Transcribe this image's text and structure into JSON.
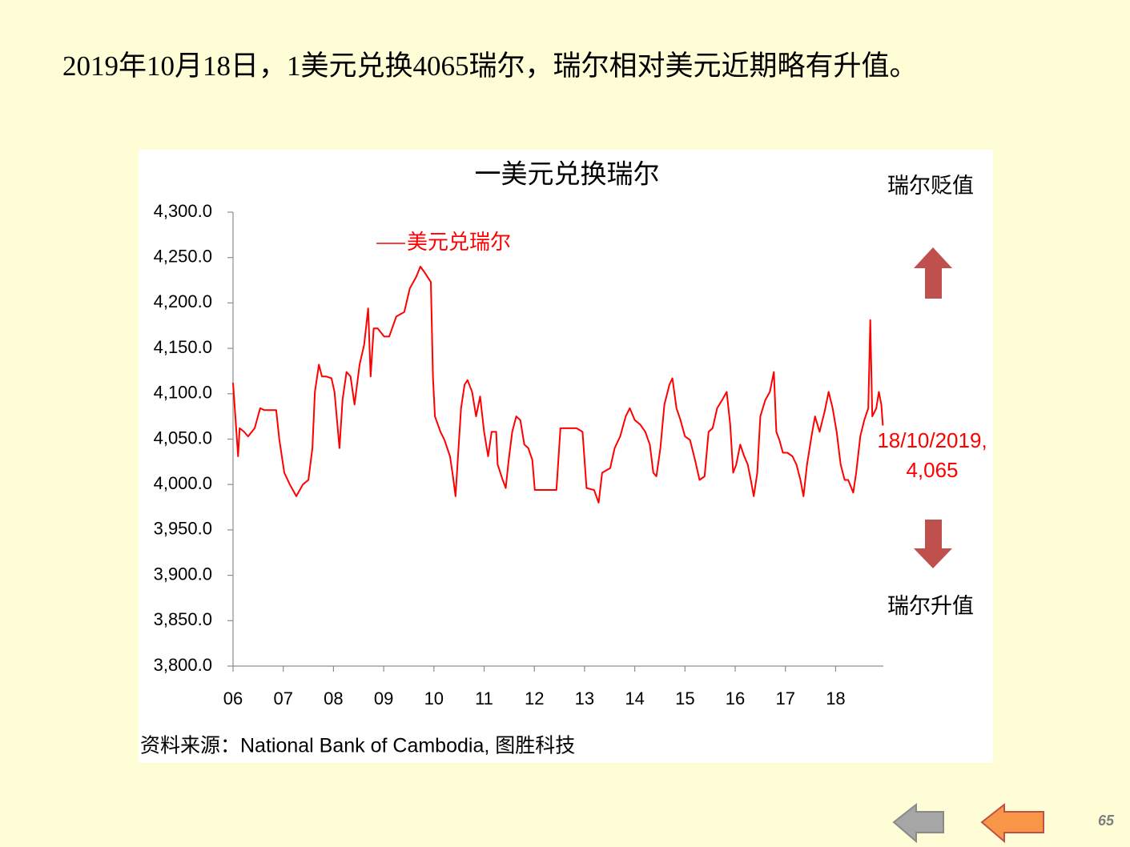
{
  "slide": {
    "heading": "2019年10月18日，1美元兑换4065瑞尔，瑞尔相对美元近期略有升值。",
    "page_number": "65"
  },
  "chart_data": {
    "type": "line",
    "title": "一美元兑换瑞尔",
    "x": [
      6.0,
      6.1,
      6.13,
      6.22,
      6.3,
      6.43,
      6.54,
      6.62,
      6.86,
      6.92,
      7.02,
      7.13,
      7.26,
      7.39,
      7.5,
      7.58,
      7.63,
      7.71,
      7.77,
      7.86,
      7.96,
      8.02,
      8.12,
      8.18,
      8.26,
      8.34,
      8.42,
      8.52,
      8.61,
      8.69,
      8.74,
      8.8,
      8.88,
      9.01,
      9.11,
      9.25,
      9.41,
      9.52,
      9.65,
      9.73,
      9.81,
      9.94,
      9.98,
      10.02,
      10.13,
      10.21,
      10.32,
      10.38,
      10.43,
      10.48,
      10.54,
      10.61,
      10.67,
      10.76,
      10.84,
      10.92,
      11.0,
      11.08,
      11.15,
      11.24,
      11.27,
      11.37,
      11.43,
      11.49,
      11.56,
      11.64,
      11.72,
      11.8,
      11.88,
      11.96,
      12.01,
      12.12,
      12.44,
      12.52,
      12.84,
      12.96,
      13.04,
      13.19,
      13.28,
      13.35,
      13.51,
      13.6,
      13.71,
      13.82,
      13.9,
      14.0,
      14.11,
      14.21,
      14.3,
      14.37,
      14.43,
      14.51,
      14.59,
      14.69,
      14.75,
      14.83,
      14.91,
      15.0,
      15.1,
      15.2,
      15.29,
      15.39,
      15.47,
      15.55,
      15.64,
      15.74,
      15.83,
      15.9,
      15.96,
      16.02,
      16.1,
      16.18,
      16.25,
      16.31,
      16.37,
      16.44,
      16.5,
      16.6,
      16.69,
      16.77,
      16.82,
      16.88,
      16.95,
      17.04,
      17.14,
      17.22,
      17.3,
      17.36,
      17.43,
      17.52,
      17.59,
      17.68,
      17.78,
      17.86,
      17.94,
      18.02,
      18.1,
      18.18,
      18.25,
      18.35,
      18.41,
      18.49,
      18.57,
      18.65,
      18.69,
      18.73,
      18.81,
      18.86,
      18.91,
      18.94
    ],
    "series": [
      {
        "name": "美元兑瑞尔",
        "color": "#ff0000",
        "values": [
          4112,
          4031,
          4062,
          4058,
          4053,
          4062,
          4084,
          4082,
          4082,
          4050,
          4013,
          4000,
          3987,
          4000,
          4005,
          4040,
          4102,
          4132,
          4119,
          4119,
          4117,
          4102,
          4040,
          4093,
          4124,
          4119,
          4088,
          4132,
          4154,
          4194,
          4119,
          4172,
          4172,
          4163,
          4163,
          4185,
          4190,
          4216,
          4229,
          4240,
          4234,
          4223,
          4119,
          4075,
          4058,
          4049,
          4031,
          4009,
          3987,
          4031,
          4084,
          4110,
          4115,
          4102,
          4075,
          4097,
          4058,
          4031,
          4058,
          4058,
          4022,
          4005,
          3996,
          4027,
          4058,
          4075,
          4071,
          4044,
          4040,
          4027,
          3994,
          3994,
          3994,
          4062,
          4062,
          4058,
          3996,
          3994,
          3980,
          4013,
          4018,
          4040,
          4053,
          4075,
          4084,
          4071,
          4066,
          4058,
          4044,
          4013,
          4009,
          4040,
          4088,
          4110,
          4117,
          4084,
          4071,
          4053,
          4049,
          4027,
          4005,
          4009,
          4058,
          4062,
          4084,
          4093,
          4102,
          4066,
          4013,
          4022,
          4044,
          4031,
          4022,
          4005,
          3987,
          4013,
          4075,
          4093,
          4102,
          4124,
          4058,
          4049,
          4035,
          4035,
          4031,
          4022,
          4005,
          3987,
          4022,
          4053,
          4075,
          4058,
          4080,
          4102,
          4084,
          4058,
          4022,
          4005,
          4005,
          3991,
          4013,
          4053,
          4071,
          4084,
          4181,
          4075,
          4084,
          4102,
          4088,
          4065
        ]
      }
    ],
    "xlim": [
      6,
      18.95
    ],
    "xticks": [
      {
        "value": 6,
        "label": "06"
      },
      {
        "value": 7,
        "label": "07"
      },
      {
        "value": 8,
        "label": "08"
      },
      {
        "value": 9,
        "label": "09"
      },
      10,
      11,
      12,
      13,
      14,
      15,
      16,
      17,
      18
    ],
    "ylim": [
      3800,
      4300
    ],
    "yticks": [
      {
        "value": 3800,
        "label": "3,800.0"
      },
      {
        "value": 3850,
        "label": "3,850.0"
      },
      {
        "value": 3900,
        "label": "3,900.0"
      },
      {
        "value": 3950,
        "label": "3,950.0"
      },
      {
        "value": 4000,
        "label": "4,000.0"
      },
      {
        "value": 4050,
        "label": "4,050.0"
      },
      {
        "value": 4100,
        "label": "4,100.0"
      },
      {
        "value": 4150,
        "label": "4,150.0"
      },
      {
        "value": 4200,
        "label": "4,200.0"
      },
      {
        "value": 4250,
        "label": "4,250.0"
      },
      {
        "value": 4300,
        "label": "4,300.0"
      }
    ],
    "grid": false,
    "legend": "top-left",
    "annotations": [
      "瑞尔贬值",
      "瑞尔升值"
    ],
    "end_label": [
      "18/10/2019,",
      "4,065"
    ],
    "source": "资料来源：National Bank of Cambodia,  图胜科技"
  }
}
